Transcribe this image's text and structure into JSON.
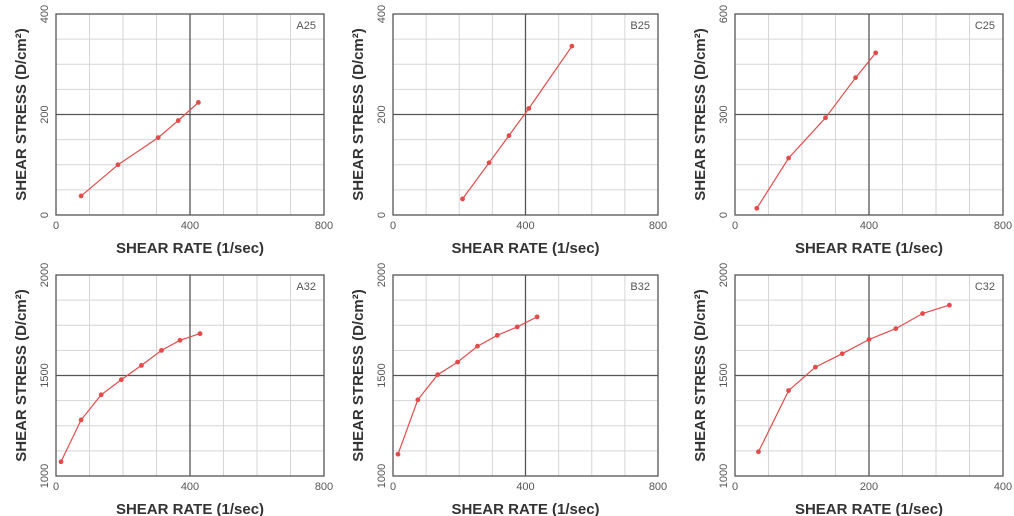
{
  "chart_data": [
    {
      "type": "line",
      "title": "A25",
      "xlabel": "SHEAR RATE (1/sec)",
      "ylabel": "SHEAR STRESS (D/cm²)",
      "xlim": [
        0,
        800
      ],
      "ylim": [
        0,
        400
      ],
      "xticks": [
        "0",
        "400",
        "800"
      ],
      "yticks": [
        "0",
        "200",
        "400"
      ],
      "x": [
        75,
        185,
        305,
        365,
        425
      ],
      "values": [
        38,
        100,
        154,
        188,
        224
      ],
      "color": "#e34a4a",
      "grid": true
    },
    {
      "type": "line",
      "title": "B25",
      "xlabel": "SHEAR RATE (1/sec)",
      "ylabel": "SHEAR STRESS (D/cm²)",
      "xlim": [
        0,
        800
      ],
      "ylim": [
        0,
        400
      ],
      "xticks": [
        "0",
        "400",
        "800"
      ],
      "yticks": [
        "0",
        "200",
        "400"
      ],
      "x": [
        210,
        290,
        350,
        410,
        540
      ],
      "values": [
        32,
        104,
        158,
        212,
        336
      ],
      "color": "#e34a4a",
      "grid": true
    },
    {
      "type": "line",
      "title": "C25",
      "xlabel": "SHEAR RATE (1/sec)",
      "ylabel": "SHEAR STRESS (D/cm²)",
      "xlim": [
        0,
        800
      ],
      "ylim": [
        0,
        600
      ],
      "xticks": [
        "0",
        "400",
        "800"
      ],
      "yticks": [
        "0",
        "300",
        "600"
      ],
      "x": [
        65,
        160,
        270,
        360,
        420
      ],
      "values": [
        20,
        170,
        290,
        410,
        484
      ],
      "color": "#e34a4a",
      "grid": true
    },
    {
      "type": "line",
      "title": "A32",
      "xlabel": "SHEAR RATE (1/sec)",
      "ylabel": "SHEAR STRESS (D/cm²)",
      "xlim": [
        0,
        800
      ],
      "ylim": [
        900,
        2100
      ],
      "xticks": [
        "0",
        "400",
        "800"
      ],
      "yticks": [
        "1000",
        "1500",
        "2000"
      ],
      "x": [
        15,
        75,
        135,
        195,
        255,
        315,
        370,
        430
      ],
      "values": [
        985,
        1235,
        1385,
        1475,
        1560,
        1650,
        1710,
        1750
      ],
      "color": "#e34a4a",
      "grid": true
    },
    {
      "type": "line",
      "title": "B32",
      "xlabel": "SHEAR RATE (1/sec)",
      "ylabel": "SHEAR STRESS (D/cm²)",
      "xlim": [
        0,
        800
      ],
      "ylim": [
        900,
        2100
      ],
      "xticks": [
        "0",
        "400",
        "800"
      ],
      "yticks": [
        "1000",
        "1500",
        "2000"
      ],
      "x": [
        15,
        75,
        135,
        195,
        255,
        315,
        375,
        435
      ],
      "values": [
        1030,
        1355,
        1505,
        1580,
        1675,
        1740,
        1790,
        1850
      ],
      "color": "#e34a4a",
      "grid": true
    },
    {
      "type": "line",
      "title": "C32",
      "xlabel": "SHEAR RATE (1/sec)",
      "ylabel": "SHEAR STRESS (D/cm²)",
      "xlim": [
        0,
        400
      ],
      "ylim": [
        900,
        2100
      ],
      "xticks": [
        "0",
        "200",
        "400"
      ],
      "yticks": [
        "1000",
        "1500",
        "2000"
      ],
      "x": [
        35,
        80,
        120,
        160,
        200,
        240,
        280,
        320
      ],
      "values": [
        1045,
        1410,
        1550,
        1630,
        1715,
        1780,
        1870,
        1920
      ],
      "color": "#e34a4a",
      "grid": true
    }
  ]
}
